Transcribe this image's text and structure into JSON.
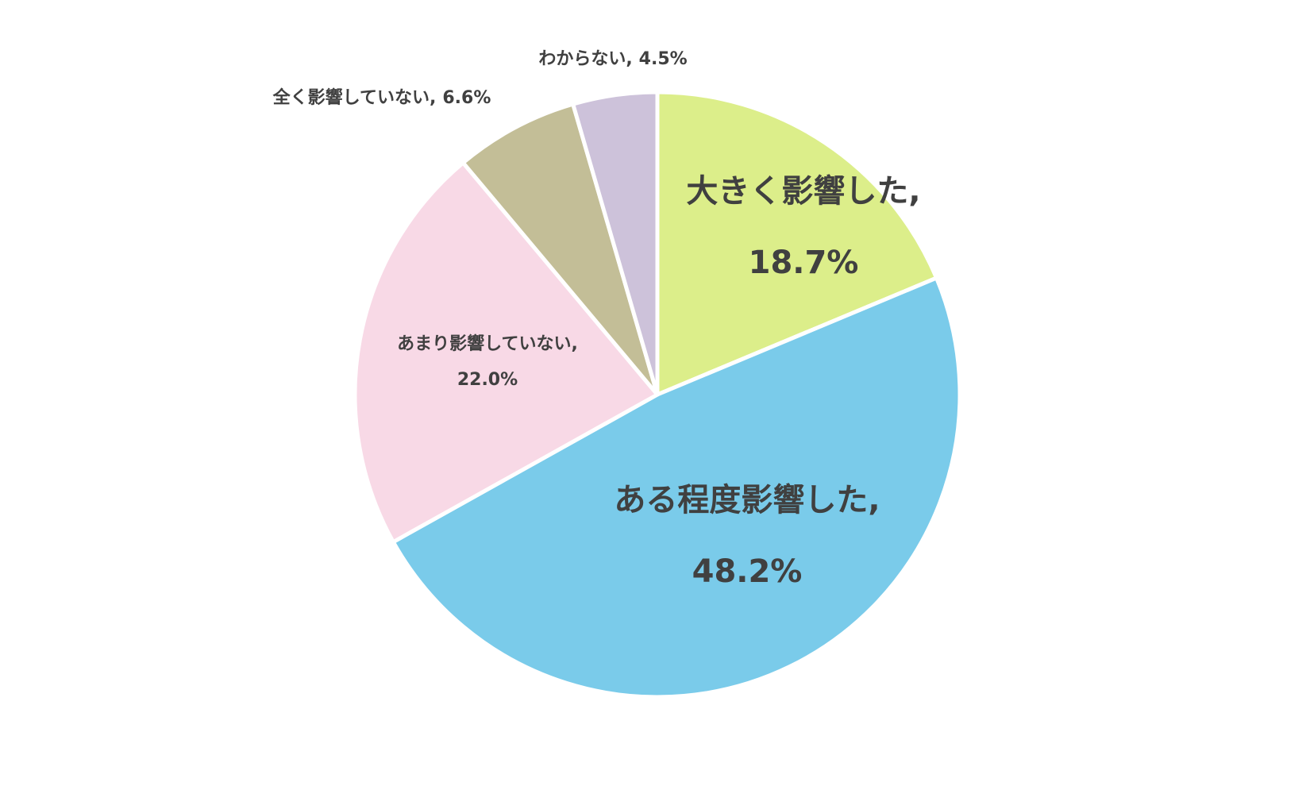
{
  "chart_data": {
    "type": "pie",
    "categories": [
      "大きく影響した,",
      "ある程度影響した,",
      "あまり影響していない,",
      "全く影響していない,",
      "わからない,"
    ],
    "values": [
      18.7,
      48.2,
      22.0,
      6.6,
      4.5
    ],
    "value_labels": [
      "18.7%",
      "48.2%",
      "22.0%",
      "6.6%",
      "4.5%"
    ],
    "colors": [
      "#dcee8a",
      "#7acbea",
      "#f8d9e6",
      "#c3be97",
      "#cdc2da"
    ]
  }
}
